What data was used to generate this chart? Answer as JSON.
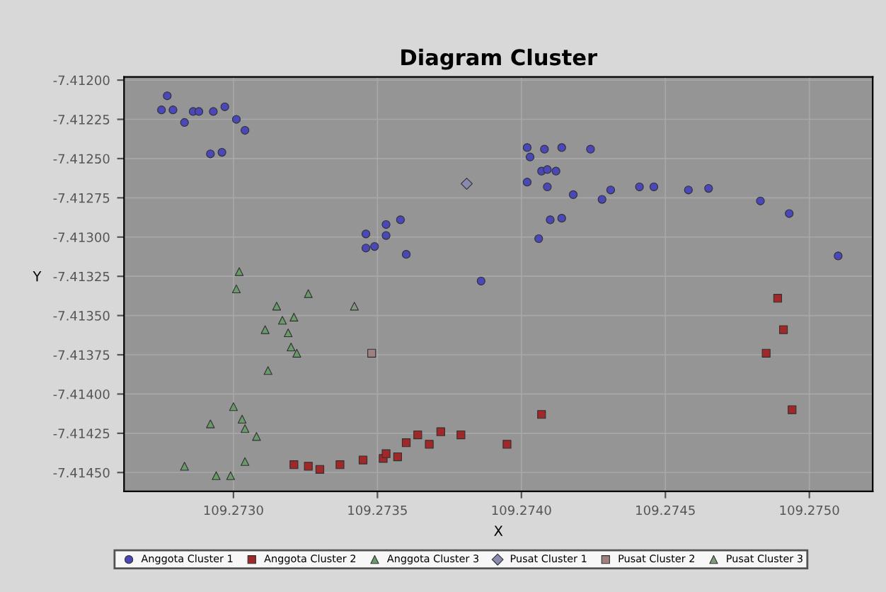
{
  "chart_data": {
    "type": "scatter",
    "title": "Diagram Cluster",
    "xlabel": "X",
    "ylabel": "Y",
    "xlim": [
      109.27262,
      109.27522
    ],
    "ylim": [
      -7.41462,
      -7.41198
    ],
    "xticks": [
      {
        "value": 109.273,
        "label": "109.2730"
      },
      {
        "value": 109.2735,
        "label": "109.2735"
      },
      {
        "value": 109.274,
        "label": "109.2740"
      },
      {
        "value": 109.2745,
        "label": "109.2745"
      },
      {
        "value": 109.275,
        "label": "109.2750"
      }
    ],
    "yticks": [
      {
        "value": -7.412,
        "label": "-7.41200"
      },
      {
        "value": -7.41225,
        "label": "-7.41225"
      },
      {
        "value": -7.4125,
        "label": "-7.41250"
      },
      {
        "value": -7.41275,
        "label": "-7.41275"
      },
      {
        "value": -7.413,
        "label": "-7.41300"
      },
      {
        "value": -7.41325,
        "label": "-7.41325"
      },
      {
        "value": -7.4135,
        "label": "-7.41350"
      },
      {
        "value": -7.41375,
        "label": "-7.41375"
      },
      {
        "value": -7.414,
        "label": "-7.41400"
      },
      {
        "value": -7.41425,
        "label": "-7.41425"
      },
      {
        "value": -7.4145,
        "label": "-7.41450"
      }
    ],
    "grid": true,
    "legend": "bottom",
    "series": [
      {
        "name": "Anggota Cluster 1",
        "color": "#4a48b8",
        "marker": "circle",
        "x": [
          109.27275,
          109.27277,
          109.27279,
          109.27283,
          109.27286,
          109.27288,
          109.27293,
          109.27297,
          109.27301,
          109.27304,
          109.27292,
          109.27296,
          109.27346,
          109.27346,
          109.27349,
          109.27353,
          109.27353,
          109.27358,
          109.2736,
          109.27402,
          109.27403,
          109.27408,
          109.27407,
          109.27409,
          109.27412,
          109.27414,
          109.27424,
          109.27402,
          109.27409,
          109.27418,
          109.27428,
          109.27431,
          109.27441,
          109.27446,
          109.27458,
          109.27465,
          109.27483,
          109.27493,
          109.2741,
          109.27414,
          109.27406,
          109.2751,
          109.27386
        ],
        "values": [
          -7.41219,
          -7.4121,
          -7.41219,
          -7.41227,
          -7.4122,
          -7.4122,
          -7.4122,
          -7.41217,
          -7.41225,
          -7.41232,
          -7.41247,
          -7.41246,
          -7.41298,
          -7.41307,
          -7.41306,
          -7.41292,
          -7.41299,
          -7.41289,
          -7.41311,
          -7.41243,
          -7.41249,
          -7.41244,
          -7.41258,
          -7.41257,
          -7.41258,
          -7.41243,
          -7.41244,
          -7.41265,
          -7.41268,
          -7.41273,
          -7.41276,
          -7.4127,
          -7.41268,
          -7.41268,
          -7.4127,
          -7.41269,
          -7.41277,
          -7.41285,
          -7.41289,
          -7.41288,
          -7.41301,
          -7.41312,
          -7.41328
        ]
      },
      {
        "name": "Anggota Cluster 2",
        "color": "#a02828",
        "marker": "square",
        "x": [
          109.27321,
          109.27326,
          109.2733,
          109.27337,
          109.27345,
          109.27352,
          109.27353,
          109.27357,
          109.2736,
          109.27364,
          109.27368,
          109.27372,
          109.27379,
          109.27395,
          109.27407,
          109.27485,
          109.27489,
          109.27491,
          109.27494
        ],
        "values": [
          -7.41445,
          -7.41446,
          -7.41448,
          -7.41445,
          -7.41442,
          -7.41441,
          -7.41438,
          -7.4144,
          -7.41431,
          -7.41426,
          -7.41432,
          -7.41424,
          -7.41426,
          -7.41432,
          -7.41413,
          -7.41374,
          -7.41339,
          -7.41359,
          -7.4141
        ]
      },
      {
        "name": "Anggota Cluster 3",
        "color": "#6a9a6a",
        "marker": "triangle",
        "x": [
          109.27302,
          109.27301,
          109.27326,
          109.27315,
          109.27321,
          109.27317,
          109.27311,
          109.27319,
          109.2732,
          109.27322,
          109.27312,
          109.273,
          109.27303,
          109.27304,
          109.27308,
          109.27292,
          109.27283,
          109.27294,
          109.27304,
          109.27299
        ],
        "values": [
          -7.41322,
          -7.41333,
          -7.41336,
          -7.41344,
          -7.41351,
          -7.41353,
          -7.41359,
          -7.41361,
          -7.4137,
          -7.41374,
          -7.41385,
          -7.41408,
          -7.41416,
          -7.41422,
          -7.41427,
          -7.41419,
          -7.41446,
          -7.41452,
          -7.41443,
          -7.41452
        ]
      },
      {
        "name": "Pusat Cluster 1",
        "color": "#8a8ab0",
        "marker": "diamond",
        "x": [
          109.27381
        ],
        "values": [
          -7.41266
        ]
      },
      {
        "name": "Pusat Cluster 2",
        "color": "#a08080",
        "marker": "square",
        "x": [
          109.27348
        ],
        "values": [
          -7.41374
        ]
      },
      {
        "name": "Pusat Cluster 3",
        "color": "#809a80",
        "marker": "triangle",
        "x": [
          109.27342
        ],
        "values": [
          -7.41344
        ]
      }
    ]
  }
}
